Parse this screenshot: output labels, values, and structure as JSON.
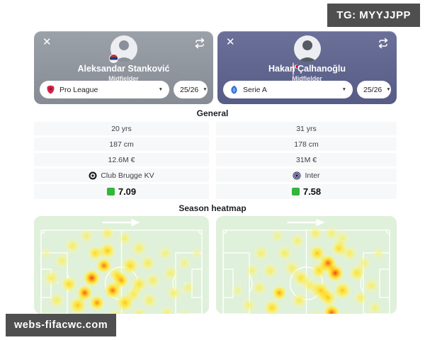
{
  "watermarks": {
    "top_right": "TG: MYYJJPP",
    "bottom_left": "webs-fifacwc.com"
  },
  "sections": {
    "general": "General",
    "season_heatmap": "Season heatmap"
  },
  "players": [
    {
      "name": "Aleksandar Stanković",
      "position": "Midfielder",
      "league": "Pro League",
      "season": "25/26",
      "nationality": "Serbia",
      "stats": {
        "age": "20 yrs",
        "height": "187 cm",
        "market_value": "12.6M €",
        "club": "Club Brugge KV",
        "rating": "7.09"
      }
    },
    {
      "name": "Hakan Çalhanoğlu",
      "position": "Midfielder",
      "league": "Serie A",
      "season": "25/26",
      "nationality": "Turkey",
      "stats": {
        "age": "31 yrs",
        "height": "178 cm",
        "market_value": "31M €",
        "club": "Inter",
        "rating": "7.58"
      }
    }
  ],
  "colors": {
    "rating_green": "#34b53c",
    "badge_bg": "#4f4f4f",
    "card_left_top": "#9ba1a9",
    "card_left_bottom": "#868b94",
    "card_right_top": "#6b7099",
    "card_right_bottom": "#575c86",
    "pitch_green": "#dff0db",
    "pitch_lines": "#ffffff",
    "pro_league_icon": "#d6244a",
    "serie_a_icon": "#2f6fd6"
  },
  "heatmap": {
    "ramp": [
      {
        "t": 0.0,
        "c": [
          255,
          255,
          180,
          0
        ]
      },
      {
        "t": 0.1,
        "c": [
          250,
          248,
          150,
          70
        ]
      },
      {
        "t": 0.22,
        "c": [
          250,
          240,
          100,
          190
        ]
      },
      {
        "t": 0.4,
        "c": [
          255,
          222,
          48,
          250
        ]
      },
      {
        "t": 0.58,
        "c": [
          255,
          160,
          32,
          255
        ]
      },
      {
        "t": 0.78,
        "c": [
          238,
          80,
          25,
          255
        ]
      },
      {
        "t": 1.0,
        "c": [
          198,
          28,
          18,
          255
        ]
      }
    ],
    "players": [
      {
        "points": [
          [
            0.33,
            0.5,
            13,
            0.8
          ],
          [
            0.29,
            0.62,
            12,
            0.75
          ],
          [
            0.4,
            0.4,
            12,
            0.7
          ],
          [
            0.45,
            0.6,
            13,
            0.7
          ],
          [
            0.36,
            0.7,
            12,
            0.65
          ],
          [
            0.5,
            0.52,
            12,
            0.6
          ],
          [
            0.25,
            0.72,
            14,
            0.5
          ],
          [
            0.42,
            0.28,
            13,
            0.5
          ],
          [
            0.55,
            0.4,
            14,
            0.45
          ],
          [
            0.52,
            0.7,
            14,
            0.5
          ],
          [
            0.6,
            0.55,
            13,
            0.4
          ],
          [
            0.2,
            0.55,
            13,
            0.45
          ],
          [
            0.47,
            0.82,
            13,
            0.45
          ],
          [
            0.35,
            0.3,
            12,
            0.45
          ],
          [
            0.1,
            0.5,
            14,
            0.3
          ],
          [
            0.13,
            0.68,
            13,
            0.3
          ],
          [
            0.16,
            0.36,
            13,
            0.28
          ],
          [
            0.22,
            0.24,
            13,
            0.3
          ],
          [
            0.3,
            0.16,
            12,
            0.28
          ],
          [
            0.42,
            0.14,
            12,
            0.3
          ],
          [
            0.52,
            0.18,
            12,
            0.28
          ],
          [
            0.6,
            0.26,
            13,
            0.3
          ],
          [
            0.65,
            0.38,
            13,
            0.32
          ],
          [
            0.68,
            0.52,
            13,
            0.3
          ],
          [
            0.66,
            0.68,
            13,
            0.3
          ],
          [
            0.6,
            0.8,
            13,
            0.32
          ],
          [
            0.52,
            0.92,
            13,
            0.3
          ],
          [
            0.4,
            0.9,
            13,
            0.3
          ],
          [
            0.28,
            0.88,
            13,
            0.28
          ],
          [
            0.18,
            0.85,
            12,
            0.25
          ],
          [
            0.75,
            0.3,
            12,
            0.26
          ],
          [
            0.78,
            0.46,
            13,
            0.28
          ],
          [
            0.8,
            0.62,
            13,
            0.28
          ],
          [
            0.76,
            0.78,
            12,
            0.26
          ],
          [
            0.86,
            0.38,
            12,
            0.24
          ],
          [
            0.88,
            0.58,
            12,
            0.25
          ],
          [
            0.86,
            0.8,
            11,
            0.22
          ],
          [
            0.93,
            0.3,
            10,
            0.2
          ],
          [
            0.07,
            0.3,
            10,
            0.2
          ],
          [
            0.57,
            0.63,
            12,
            0.35
          ],
          [
            0.47,
            0.47,
            12,
            0.4
          ]
        ]
      },
      {
        "points": [
          [
            0.62,
            0.38,
            13,
            0.75
          ],
          [
            0.66,
            0.46,
            13,
            0.8
          ],
          [
            0.64,
            0.78,
            13,
            0.75
          ],
          [
            0.6,
            0.88,
            13,
            0.7
          ],
          [
            0.35,
            0.62,
            12,
            0.6
          ],
          [
            0.55,
            0.83,
            12,
            0.6
          ],
          [
            0.56,
            0.3,
            13,
            0.5
          ],
          [
            0.7,
            0.6,
            14,
            0.5
          ],
          [
            0.58,
            0.6,
            14,
            0.5
          ],
          [
            0.31,
            0.74,
            13,
            0.45
          ],
          [
            0.42,
            0.86,
            13,
            0.5
          ],
          [
            0.74,
            0.84,
            13,
            0.45
          ],
          [
            0.47,
            0.5,
            13,
            0.4
          ],
          [
            0.68,
            0.26,
            12,
            0.45
          ],
          [
            0.78,
            0.46,
            13,
            0.4
          ],
          [
            0.25,
            0.3,
            13,
            0.28
          ],
          [
            0.3,
            0.44,
            13,
            0.3
          ],
          [
            0.24,
            0.58,
            13,
            0.28
          ],
          [
            0.18,
            0.72,
            13,
            0.26
          ],
          [
            0.14,
            0.86,
            12,
            0.24
          ],
          [
            0.38,
            0.3,
            13,
            0.3
          ],
          [
            0.45,
            0.2,
            12,
            0.28
          ],
          [
            0.55,
            0.14,
            12,
            0.3
          ],
          [
            0.64,
            0.14,
            12,
            0.28
          ],
          [
            0.74,
            0.3,
            13,
            0.3
          ],
          [
            0.82,
            0.38,
            12,
            0.26
          ],
          [
            0.86,
            0.56,
            13,
            0.28
          ],
          [
            0.88,
            0.74,
            12,
            0.26
          ],
          [
            0.9,
            0.3,
            11,
            0.22
          ],
          [
            0.42,
            0.42,
            13,
            0.3
          ],
          [
            0.46,
            0.68,
            13,
            0.32
          ],
          [
            0.52,
            0.56,
            13,
            0.3
          ],
          [
            0.26,
            0.9,
            12,
            0.26
          ],
          [
            0.7,
            0.18,
            12,
            0.26
          ],
          [
            0.93,
            0.88,
            11,
            0.22
          ],
          [
            0.34,
            0.16,
            11,
            0.24
          ],
          [
            0.2,
            0.44,
            12,
            0.26
          ],
          [
            0.57,
            0.44,
            13,
            0.45
          ],
          [
            0.62,
            0.66,
            13,
            0.5
          ],
          [
            0.5,
            0.9,
            12,
            0.4
          ],
          [
            0.8,
            0.66,
            12,
            0.3
          ],
          [
            0.12,
            0.6,
            11,
            0.22
          ]
        ]
      }
    ]
  }
}
